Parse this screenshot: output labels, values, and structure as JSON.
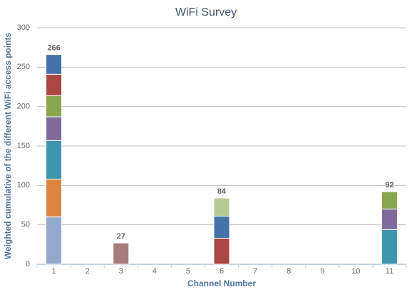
{
  "chart_data": {
    "type": "stacked-bar",
    "title": "WiFi Survey",
    "x_label": "Channel Number",
    "y_label": "Weighted cumulative of the different WiFi access points",
    "categories": [
      "1",
      "2",
      "3",
      "4",
      "5",
      "6",
      "7",
      "8",
      "9",
      "10",
      "11"
    ],
    "series": [
      {
        "color": "#92A8CD",
        "values": [
          60,
          null,
          null,
          null,
          null,
          null,
          null,
          null,
          null,
          null,
          null
        ]
      },
      {
        "color": "#DB843D",
        "values": [
          48,
          null,
          null,
          null,
          null,
          null,
          null,
          null,
          null,
          null,
          null
        ]
      },
      {
        "color": "#3D96AE",
        "values": [
          49,
          null,
          null,
          null,
          null,
          null,
          null,
          null,
          null,
          null,
          44
        ]
      },
      {
        "color": "#80699B",
        "values": [
          30,
          null,
          null,
          null,
          null,
          null,
          null,
          null,
          null,
          null,
          26
        ]
      },
      {
        "color": "#89A54E",
        "values": [
          27,
          null,
          null,
          null,
          null,
          null,
          null,
          null,
          null,
          null,
          22
        ]
      },
      {
        "color": "#AA4643",
        "values": [
          27,
          null,
          null,
          null,
          null,
          33,
          null,
          null,
          null,
          null,
          null
        ]
      },
      {
        "color": "#4572A7",
        "values": [
          25,
          null,
          null,
          null,
          null,
          28,
          null,
          null,
          null,
          null,
          null
        ]
      },
      {
        "color": "#A47D7C",
        "values": [
          null,
          null,
          27,
          null,
          null,
          null,
          null,
          null,
          null,
          null,
          null
        ]
      },
      {
        "color": "#B5CA92",
        "values": [
          null,
          null,
          null,
          null,
          null,
          23,
          null,
          null,
          null,
          null,
          null
        ]
      }
    ],
    "totals": [
      266,
      null,
      27,
      null,
      null,
      84,
      null,
      null,
      null,
      null,
      92
    ],
    "ylim": [
      0,
      300
    ],
    "yticks": [
      0,
      50,
      100,
      150,
      200,
      250,
      300
    ],
    "grid": true
  }
}
